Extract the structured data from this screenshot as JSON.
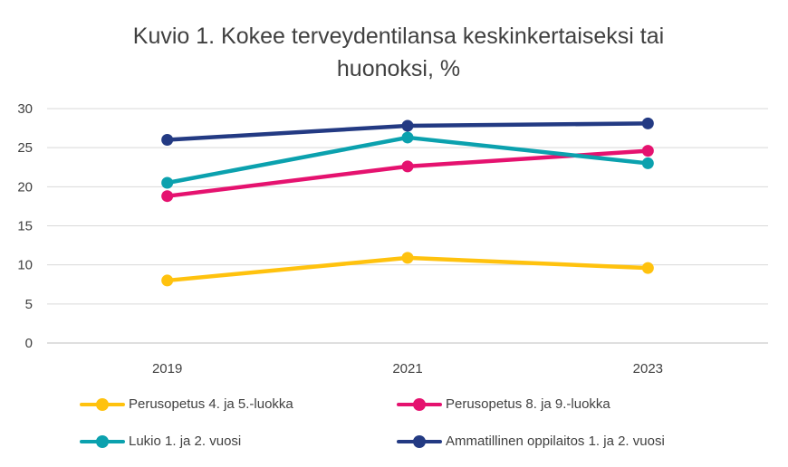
{
  "chart_data": {
    "type": "line",
    "title": "Kuvio 1. Kokee terveydentilansa keskinkertaiseksi tai huonoksi, %",
    "title_lines": [
      "Kuvio 1. Kokee terveydentilansa keskinkertaiseksi tai",
      "huonoksi, %"
    ],
    "categories": [
      "2019",
      "2021",
      "2023"
    ],
    "ylim": [
      0,
      30
    ],
    "yticks": [
      "0",
      "5",
      "10",
      "15",
      "20",
      "25",
      "30"
    ],
    "grid": true,
    "legend_position": "bottom",
    "series": [
      {
        "name": "Perusopetus 4. ja 5.-luokka",
        "color": "#FFC20E",
        "values": [
          8.0,
          10.9,
          9.6
        ]
      },
      {
        "name": "Perusopetus 8. ja 9.-luokka",
        "color": "#E5126F",
        "values": [
          18.8,
          22.6,
          24.6
        ]
      },
      {
        "name": "Lukio 1. ja 2. vuosi",
        "color": "#0BA1AE",
        "values": [
          20.5,
          26.3,
          23.0
        ]
      },
      {
        "name": "Ammatillinen oppilaitos 1. ja 2. vuosi",
        "color": "#233A83",
        "values": [
          26.0,
          27.8,
          28.1
        ]
      }
    ]
  }
}
